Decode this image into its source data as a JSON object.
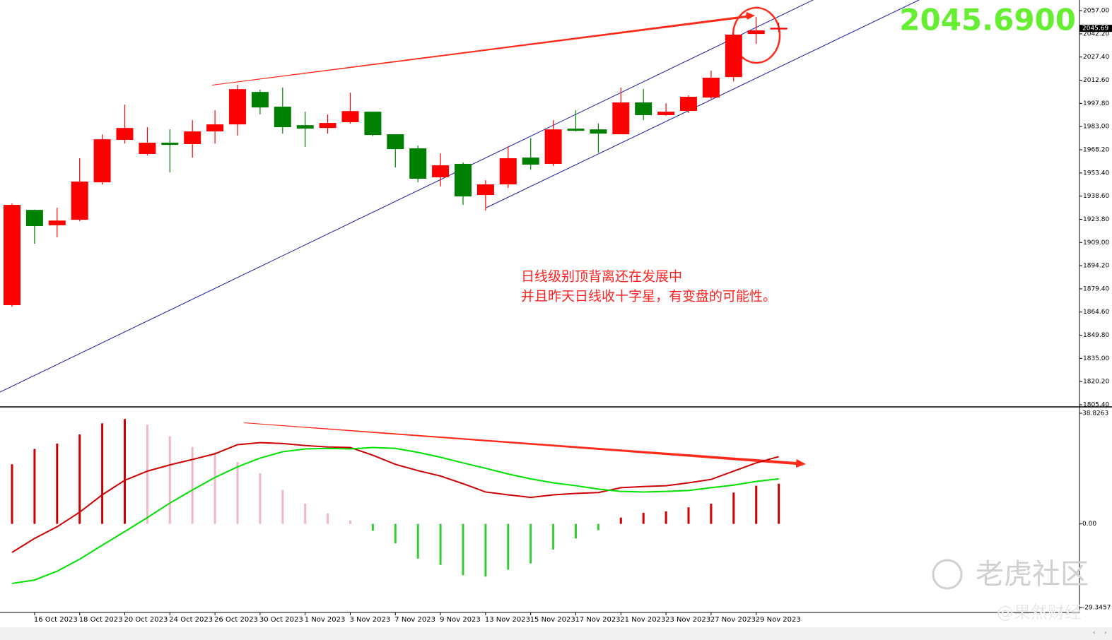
{
  "chart_data": [
    {
      "type": "candlestick",
      "categories": [
        null,
        "16 Oct 2023",
        null,
        "18 Oct 2023",
        null,
        "20 Oct 2023",
        null,
        "24 Oct 2023",
        null,
        "26 Oct 2023",
        null,
        "30 Oct 2023",
        null,
        "1 Nov 2023",
        null,
        "3 Nov 2023",
        null,
        "7 Nov 2023",
        null,
        "9 Nov 2023",
        null,
        "13 Nov 2023",
        null,
        "15 Nov 2023",
        null,
        "17 Nov 2023",
        null,
        "21 Nov 2023",
        null,
        "23 Nov 2023",
        null,
        "27 Nov 2023",
        null,
        "29 Nov 2023",
        null
      ],
      "open": [
        1869.0,
        1929.8,
        1920.0,
        1923.5,
        1947.4,
        1974.5,
        1965.5,
        1972.7,
        1971.8,
        1979.9,
        1984.4,
        2005.1,
        1995.7,
        1983.9,
        1982.1,
        1985.8,
        1992.5,
        1978.1,
        1969.1,
        1950.6,
        1959.2,
        1939.3,
        1946.1,
        1963.2,
        1959.2,
        1981.7,
        1981.2,
        1978.1,
        1998.4,
        1990.3,
        1993.0,
        2001.5,
        2014.6,
        2042.1,
        2045.6
      ],
      "high": [
        1934.0,
        1930.0,
        1931.2,
        1962.8,
        1978.0,
        1997.0,
        1982.6,
        1981.2,
        1987.1,
        1993.4,
        2009.7,
        2006.5,
        2007.9,
        1992.5,
        1990.7,
        2004.7,
        1992.5,
        1978.1,
        1970.9,
        1965.9,
        1960.1,
        1948.8,
        1970.4,
        1975.8,
        1987.1,
        1993.4,
        1984.9,
        2007.9,
        2007.0,
        1997.9,
        2002.9,
        2018.7,
        2042.6,
        2052.9,
        2049.3
      ],
      "low": [
        1868.0,
        1908.2,
        1912.3,
        1922.6,
        1946.0,
        1972.2,
        1964.6,
        1953.7,
        1963.2,
        1972.2,
        1977.2,
        1990.7,
        1978.5,
        1970.0,
        1978.5,
        1984.9,
        1977.0,
        1956.9,
        1947.4,
        1944.7,
        1933.0,
        1929.4,
        1943.8,
        1955.5,
        1957.8,
        1979.9,
        1966.4,
        1978.1,
        1987.1,
        1989.8,
        1991.6,
        2000.6,
        2011.9,
        2035.8,
        2043.5
      ],
      "close": [
        1933.0,
        1919.5,
        1923.0,
        1947.9,
        1974.9,
        1982.1,
        1972.7,
        1971.3,
        1979.9,
        1984.4,
        2006.9,
        1995.2,
        1982.6,
        1981.7,
        1985.3,
        1992.9,
        1977.6,
        1968.6,
        1949.7,
        1958.3,
        1938.4,
        1946.1,
        1962.8,
        1958.7,
        1981.2,
        1980.3,
        1978.5,
        1998.4,
        1990.3,
        1992.5,
        2002.0,
        2014.2,
        2041.7,
        2044.4,
        2045.69
      ],
      "up_color": "#ff0000",
      "down_color": "#008000",
      "ylim": [
        1804.5,
        2063.8
      ],
      "yticks": [
        {
          "value": 1805.4,
          "label": "1805.40"
        },
        {
          "value": 1820.2,
          "label": "1820.20"
        },
        {
          "value": 1835.0,
          "label": "1835.00"
        },
        {
          "value": 1849.8,
          "label": "1849.80"
        },
        {
          "value": 1864.6,
          "label": "1864.60"
        },
        {
          "value": 1879.4,
          "label": "1879.40"
        },
        {
          "value": 1894.2,
          "label": "1894.20"
        },
        {
          "value": 1909.0,
          "label": "1909.00"
        },
        {
          "value": 1923.8,
          "label": "1923.80"
        },
        {
          "value": 1938.6,
          "label": "1938.60"
        },
        {
          "value": 1953.4,
          "label": "1953.40"
        },
        {
          "value": 1968.2,
          "label": "1968.20"
        },
        {
          "value": 1983.0,
          "label": "1983.00"
        },
        {
          "value": 1997.8,
          "label": "1997.80"
        },
        {
          "value": 2012.6,
          "label": "2012.60"
        },
        {
          "value": 2027.4,
          "label": "2027.40"
        },
        {
          "value": 2042.2,
          "label": "2042.20"
        },
        {
          "value": 2057.0,
          "label": "2057.00"
        }
      ],
      "last_price": {
        "value": 2045.69,
        "label": "2045.69"
      },
      "big_price": "2045.6900",
      "annotation": [
        "日线级别顶背离还在发展中",
        "并且昨天日线收十字星，有变盘的可能性。"
      ]
    },
    {
      "type": "macd",
      "histogram": [
        20.9,
        26.3,
        28.2,
        31.4,
        35.3,
        36.8,
        34.8,
        30.7,
        27.0,
        25.1,
        21.7,
        17.8,
        11.9,
        7.1,
        3.7,
        1.2,
        -2.4,
        -6.8,
        -12.2,
        -14.4,
        -18.0,
        -18.5,
        -16.1,
        -13.9,
        -9.0,
        -5.1,
        -2.2,
        2.2,
        3.9,
        4.4,
        5.8,
        7.1,
        11.0,
        13.4,
        14.1
      ],
      "histogram_colors": [
        "#cc0000",
        "#cc0000",
        "#cc0000",
        "#cc0000",
        "#cc0000",
        "#cc0000",
        "#f4b6c2",
        "#f4b6c2",
        "#f4b6c2",
        "#f4b6c2",
        "#f4b6c2",
        "#f4b6c2",
        "#f4b6c2",
        "#f4b6c2",
        "#f4b6c2",
        "#f4b6c2",
        "#33cc33",
        "#33cc33",
        "#33cc33",
        "#33cc33",
        "#33cc33",
        "#33cc33",
        "#33cc33",
        "#33cc33",
        "#33cc33",
        "#33cc33",
        "#33cc33",
        "#cc0000",
        "#cc0000",
        "#cc0000",
        "#cc0000",
        "#cc0000",
        "#cc0000",
        "#cc0000",
        "#cc0000"
      ],
      "series": [
        {
          "color": "#cc0000",
          "values": [
            -10.0,
            -5.1,
            -1.0,
            4.1,
            10.2,
            15.3,
            18.5,
            20.7,
            22.6,
            24.6,
            27.8,
            28.5,
            28.2,
            27.5,
            27.0,
            26.8,
            24.1,
            20.9,
            18.7,
            16.8,
            14.1,
            11.2,
            10.2,
            9.3,
            10.2,
            10.7,
            11.0,
            12.7,
            13.1,
            13.4,
            14.4,
            15.6,
            18.5,
            21.4,
            23.6
          ]
        },
        {
          "color": "#00e000",
          "values": [
            -20.9,
            -19.7,
            -16.6,
            -12.4,
            -7.5,
            -2.7,
            2.2,
            7.3,
            11.9,
            16.3,
            20.0,
            23.1,
            25.3,
            26.3,
            26.5,
            26.3,
            26.8,
            26.5,
            25.1,
            23.4,
            21.4,
            19.5,
            17.5,
            15.8,
            14.4,
            13.4,
            12.2,
            11.4,
            11.2,
            11.4,
            11.7,
            12.7,
            13.6,
            14.9,
            15.8
          ]
        }
      ],
      "ylim": [
        -30.83,
        40.56
      ],
      "yticks": [
        -29.3457,
        {
          "value": 0,
          "label": "0.00"
        },
        38.8263
      ]
    }
  ],
  "watermarks": [
    "老虎社区",
    "@果然财经"
  ]
}
